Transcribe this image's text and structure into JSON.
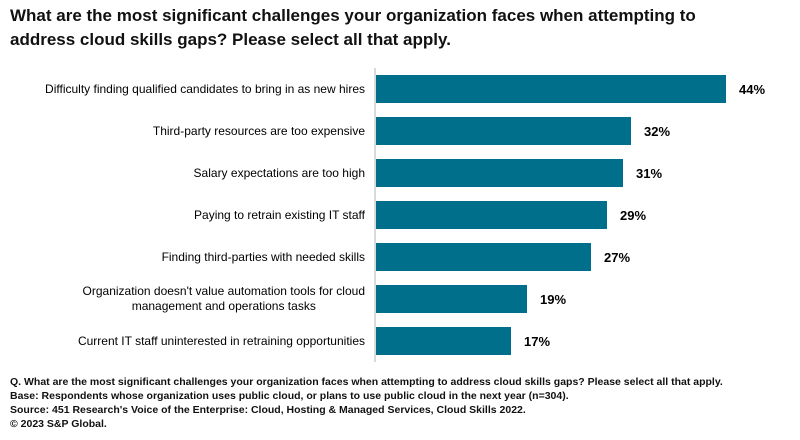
{
  "chart_data": {
    "type": "bar",
    "orientation": "horizontal",
    "title": "What are the most significant challenges your organization faces when attempting to\naddress cloud skills gaps? Please select all that apply.",
    "categories": [
      "Difficulty finding qualified candidates to bring in as new hires",
      "Third-party resources are too expensive",
      "Salary expectations are too high",
      "Paying to retrain existing IT staff",
      "Finding third-parties with needed skills",
      "Organization doesn't value automation tools for cloud\nmanagement and operations tasks",
      "Current IT staff uninterested in retraining opportunities"
    ],
    "values": [
      44,
      32,
      31,
      29,
      27,
      19,
      17
    ],
    "value_labels": [
      "44%",
      "32%",
      "31%",
      "29%",
      "27%",
      "19%",
      "17%"
    ],
    "xlabel": "",
    "ylabel": "",
    "xlim": [
      0,
      44
    ],
    "grid": "off",
    "legend": "none",
    "bar_color": "#006F8C",
    "axis_color": "#D9D9D9",
    "text_color": "#111111",
    "background_color": "#FFFFFF"
  },
  "footer": {
    "lines": [
      "Q. What are the most significant challenges your organization faces when attempting to address cloud skills gaps? Please select all that apply.",
      "Base: Respondents whose organization uses public cloud, or plans to use public cloud in the next year (n=304).",
      "Source: 451 Research's Voice of the Enterprise: Cloud, Hosting & Managed Services, Cloud Skills 2022.",
      "© 2023 S&P Global."
    ]
  }
}
